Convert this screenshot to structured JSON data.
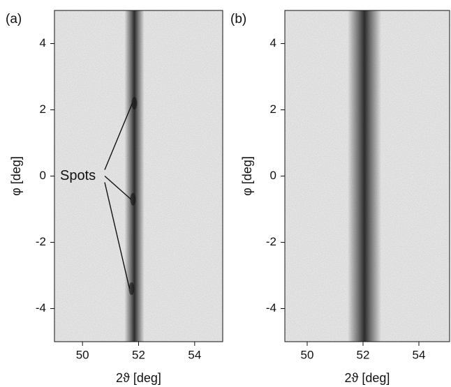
{
  "chart_data": [
    {
      "type": "image",
      "panel_label": "(a)",
      "xlabel": "2ϑ [deg]",
      "ylabel": "φ [deg]",
      "xlim": [
        49,
        55
      ],
      "xticks": [
        50,
        52,
        54
      ],
      "ylim": [
        -5,
        5
      ],
      "yticks": [
        -4,
        -2,
        0,
        2,
        4
      ],
      "peak_position": 51.85,
      "peak_width": 0.35,
      "color": "#222222",
      "annotations": [
        {
          "text": "Spots",
          "points": [
            [
              51.85,
              2.2
            ],
            [
              51.8,
              -0.7
            ],
            [
              51.75,
              -3.4
            ]
          ]
        }
      ]
    },
    {
      "type": "image",
      "panel_label": "(b)",
      "xlabel": "2ϑ [deg]",
      "ylabel": "φ [deg]",
      "xlim": [
        49.2,
        55.1
      ],
      "xticks": [
        50,
        52,
        54
      ],
      "ylim": [
        -5,
        5
      ],
      "yticks": [
        -4,
        -2,
        0,
        2,
        4
      ],
      "peak_position": 52.05,
      "peak_width": 0.6,
      "color": "#222222"
    }
  ]
}
